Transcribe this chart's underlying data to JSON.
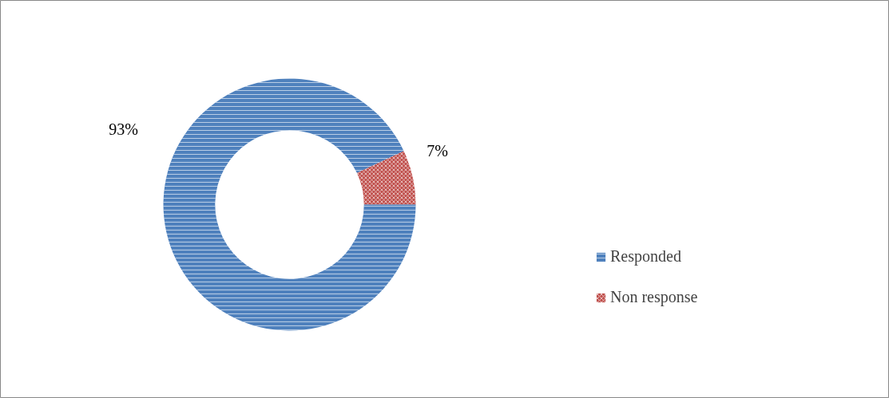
{
  "chart_data": {
    "type": "donut",
    "categories": [
      "Responded",
      "Non response"
    ],
    "values": [
      93,
      7
    ],
    "colors": [
      "#4f81bd",
      "#c0504d"
    ],
    "value_labels": [
      "93%",
      "7%"
    ],
    "legend": "right"
  }
}
